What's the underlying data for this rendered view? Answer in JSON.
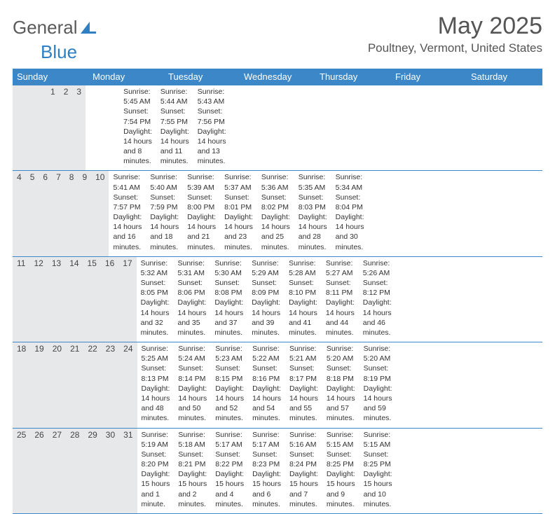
{
  "logo": {
    "word1": "General",
    "word2": "Blue",
    "icon_color": "#2F7FC2"
  },
  "title": "May 2025",
  "location": "Poultney, Vermont, United States",
  "colors": {
    "header_bg": "#3B87C8",
    "header_text": "#ffffff",
    "daynum_bg": "#e6e8ea",
    "border": "#3B87C8",
    "text": "#333333"
  },
  "weekdays": [
    "Sunday",
    "Monday",
    "Tuesday",
    "Wednesday",
    "Thursday",
    "Friday",
    "Saturday"
  ],
  "weeks": [
    [
      {
        "n": "",
        "sr": "",
        "ss": "",
        "dl": ""
      },
      {
        "n": "",
        "sr": "",
        "ss": "",
        "dl": ""
      },
      {
        "n": "",
        "sr": "",
        "ss": "",
        "dl": ""
      },
      {
        "n": "",
        "sr": "",
        "ss": "",
        "dl": ""
      },
      {
        "n": "1",
        "sr": "Sunrise: 5:45 AM",
        "ss": "Sunset: 7:54 PM",
        "dl": "Daylight: 14 hours and 8 minutes."
      },
      {
        "n": "2",
        "sr": "Sunrise: 5:44 AM",
        "ss": "Sunset: 7:55 PM",
        "dl": "Daylight: 14 hours and 11 minutes."
      },
      {
        "n": "3",
        "sr": "Sunrise: 5:43 AM",
        "ss": "Sunset: 7:56 PM",
        "dl": "Daylight: 14 hours and 13 minutes."
      }
    ],
    [
      {
        "n": "4",
        "sr": "Sunrise: 5:41 AM",
        "ss": "Sunset: 7:57 PM",
        "dl": "Daylight: 14 hours and 16 minutes."
      },
      {
        "n": "5",
        "sr": "Sunrise: 5:40 AM",
        "ss": "Sunset: 7:59 PM",
        "dl": "Daylight: 14 hours and 18 minutes."
      },
      {
        "n": "6",
        "sr": "Sunrise: 5:39 AM",
        "ss": "Sunset: 8:00 PM",
        "dl": "Daylight: 14 hours and 21 minutes."
      },
      {
        "n": "7",
        "sr": "Sunrise: 5:37 AM",
        "ss": "Sunset: 8:01 PM",
        "dl": "Daylight: 14 hours and 23 minutes."
      },
      {
        "n": "8",
        "sr": "Sunrise: 5:36 AM",
        "ss": "Sunset: 8:02 PM",
        "dl": "Daylight: 14 hours and 25 minutes."
      },
      {
        "n": "9",
        "sr": "Sunrise: 5:35 AM",
        "ss": "Sunset: 8:03 PM",
        "dl": "Daylight: 14 hours and 28 minutes."
      },
      {
        "n": "10",
        "sr": "Sunrise: 5:34 AM",
        "ss": "Sunset: 8:04 PM",
        "dl": "Daylight: 14 hours and 30 minutes."
      }
    ],
    [
      {
        "n": "11",
        "sr": "Sunrise: 5:32 AM",
        "ss": "Sunset: 8:05 PM",
        "dl": "Daylight: 14 hours and 32 minutes."
      },
      {
        "n": "12",
        "sr": "Sunrise: 5:31 AM",
        "ss": "Sunset: 8:06 PM",
        "dl": "Daylight: 14 hours and 35 minutes."
      },
      {
        "n": "13",
        "sr": "Sunrise: 5:30 AM",
        "ss": "Sunset: 8:08 PM",
        "dl": "Daylight: 14 hours and 37 minutes."
      },
      {
        "n": "14",
        "sr": "Sunrise: 5:29 AM",
        "ss": "Sunset: 8:09 PM",
        "dl": "Daylight: 14 hours and 39 minutes."
      },
      {
        "n": "15",
        "sr": "Sunrise: 5:28 AM",
        "ss": "Sunset: 8:10 PM",
        "dl": "Daylight: 14 hours and 41 minutes."
      },
      {
        "n": "16",
        "sr": "Sunrise: 5:27 AM",
        "ss": "Sunset: 8:11 PM",
        "dl": "Daylight: 14 hours and 44 minutes."
      },
      {
        "n": "17",
        "sr": "Sunrise: 5:26 AM",
        "ss": "Sunset: 8:12 PM",
        "dl": "Daylight: 14 hours and 46 minutes."
      }
    ],
    [
      {
        "n": "18",
        "sr": "Sunrise: 5:25 AM",
        "ss": "Sunset: 8:13 PM",
        "dl": "Daylight: 14 hours and 48 minutes."
      },
      {
        "n": "19",
        "sr": "Sunrise: 5:24 AM",
        "ss": "Sunset: 8:14 PM",
        "dl": "Daylight: 14 hours and 50 minutes."
      },
      {
        "n": "20",
        "sr": "Sunrise: 5:23 AM",
        "ss": "Sunset: 8:15 PM",
        "dl": "Daylight: 14 hours and 52 minutes."
      },
      {
        "n": "21",
        "sr": "Sunrise: 5:22 AM",
        "ss": "Sunset: 8:16 PM",
        "dl": "Daylight: 14 hours and 54 minutes."
      },
      {
        "n": "22",
        "sr": "Sunrise: 5:21 AM",
        "ss": "Sunset: 8:17 PM",
        "dl": "Daylight: 14 hours and 55 minutes."
      },
      {
        "n": "23",
        "sr": "Sunrise: 5:20 AM",
        "ss": "Sunset: 8:18 PM",
        "dl": "Daylight: 14 hours and 57 minutes."
      },
      {
        "n": "24",
        "sr": "Sunrise: 5:20 AM",
        "ss": "Sunset: 8:19 PM",
        "dl": "Daylight: 14 hours and 59 minutes."
      }
    ],
    [
      {
        "n": "25",
        "sr": "Sunrise: 5:19 AM",
        "ss": "Sunset: 8:20 PM",
        "dl": "Daylight: 15 hours and 1 minute."
      },
      {
        "n": "26",
        "sr": "Sunrise: 5:18 AM",
        "ss": "Sunset: 8:21 PM",
        "dl": "Daylight: 15 hours and 2 minutes."
      },
      {
        "n": "27",
        "sr": "Sunrise: 5:17 AM",
        "ss": "Sunset: 8:22 PM",
        "dl": "Daylight: 15 hours and 4 minutes."
      },
      {
        "n": "28",
        "sr": "Sunrise: 5:17 AM",
        "ss": "Sunset: 8:23 PM",
        "dl": "Daylight: 15 hours and 6 minutes."
      },
      {
        "n": "29",
        "sr": "Sunrise: 5:16 AM",
        "ss": "Sunset: 8:24 PM",
        "dl": "Daylight: 15 hours and 7 minutes."
      },
      {
        "n": "30",
        "sr": "Sunrise: 5:15 AM",
        "ss": "Sunset: 8:25 PM",
        "dl": "Daylight: 15 hours and 9 minutes."
      },
      {
        "n": "31",
        "sr": "Sunrise: 5:15 AM",
        "ss": "Sunset: 8:25 PM",
        "dl": "Daylight: 15 hours and 10 minutes."
      }
    ]
  ]
}
